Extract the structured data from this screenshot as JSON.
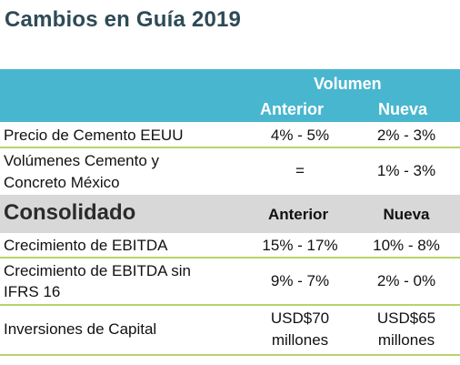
{
  "title": "Cambios en Guía 2019",
  "top_header": {
    "group": "Volumen",
    "col_prev": "Anterior",
    "col_new": "Nueva"
  },
  "top_rows": [
    {
      "label_lines": [
        "Precio de Cemento EEUU"
      ],
      "prev": "4% - 5%",
      "new": "2% - 3%"
    },
    {
      "label_lines": [
        "Volúmenes Cemento y",
        "Concreto  México"
      ],
      "prev": "=",
      "new": "1% - 3%"
    }
  ],
  "consolidated": {
    "title": "Consolidado",
    "col_prev": "Anterior",
    "col_new": "Nueva",
    "rows": [
      {
        "label_lines": [
          "Crecimiento de EBITDA"
        ],
        "prev_lines": [
          "15% - 17%"
        ],
        "new_lines": [
          "10% - 8%"
        ]
      },
      {
        "label_lines": [
          "Crecimiento de EBITDA sin",
          "IFRS 16"
        ],
        "prev_lines": [
          "9% - 7%"
        ],
        "new_lines": [
          "2% - 0%"
        ]
      },
      {
        "label_lines": [
          "Inversiones de Capital"
        ],
        "prev_lines": [
          "USD$70",
          "millones"
        ],
        "new_lines": [
          "USD$65",
          "millones"
        ]
      }
    ]
  }
}
